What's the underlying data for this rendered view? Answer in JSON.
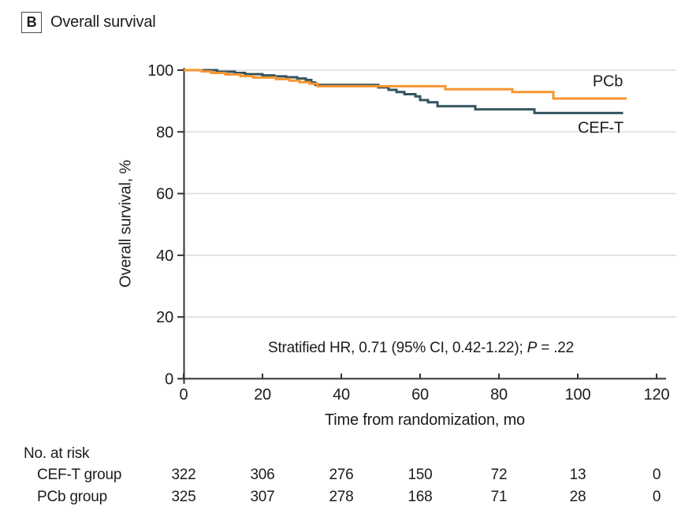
{
  "panel": {
    "label": "B",
    "title": "Overall survival"
  },
  "colors": {
    "pcb_line": "#F6952F",
    "cef_t_line": "#33545E",
    "gridline": "#DCDCDC",
    "axis": "#333333",
    "text": "#1C1C1C"
  },
  "annotation": {
    "before_p": "Stratified HR, 0.71 (95% CI, 0.42-1.22); ",
    "p": "P",
    "after_p": " = .22"
  },
  "chart_data": {
    "type": "line",
    "subtype": "kaplan-meier-step",
    "title": "Overall survival",
    "xlabel": "Time from randomization, mo",
    "ylabel": "Overall survival, %",
    "xlim": [
      0,
      120
    ],
    "ylim": [
      0,
      100
    ],
    "x_ticks": [
      0,
      20,
      40,
      60,
      80,
      100,
      120
    ],
    "y_ticks": [
      0,
      20,
      40,
      60,
      80,
      100
    ],
    "grid": "horizontal",
    "legend_position": "right-inline",
    "annotation": "Stratified HR, 0.71 (95% CI, 0.42-1.22); P = .22",
    "series": [
      {
        "name": "CEF-T",
        "color": "#33545E",
        "end_t": 111.5,
        "points": [
          [
            0,
            100
          ],
          [
            8.5,
            99.5
          ],
          [
            13,
            99.1
          ],
          [
            15.6,
            98.7
          ],
          [
            20,
            98.3
          ],
          [
            23,
            98.0
          ],
          [
            26,
            97.7
          ],
          [
            28.8,
            97.3
          ],
          [
            31,
            96.8
          ],
          [
            32.4,
            96.0
          ],
          [
            33.4,
            95.2
          ],
          [
            49.4,
            94.4
          ],
          [
            52,
            93.6
          ],
          [
            54,
            92.9
          ],
          [
            56,
            92.2
          ],
          [
            58.8,
            91.5
          ],
          [
            60,
            90.3
          ],
          [
            62,
            89.6
          ],
          [
            64.4,
            88.3
          ],
          [
            74,
            87.3
          ],
          [
            89,
            86.1
          ]
        ]
      },
      {
        "name": "PCb",
        "color": "#F6952F",
        "end_t": 112.4,
        "points": [
          [
            0,
            100
          ],
          [
            4.6,
            99.6
          ],
          [
            7,
            99.1
          ],
          [
            10.6,
            98.6
          ],
          [
            14.4,
            98.1
          ],
          [
            17.6,
            97.6
          ],
          [
            23.4,
            97.1
          ],
          [
            26.8,
            96.6
          ],
          [
            29.4,
            96.1
          ],
          [
            32,
            95.6
          ],
          [
            34,
            94.8
          ],
          [
            66.4,
            93.8
          ],
          [
            83.4,
            92.9
          ],
          [
            93.8,
            90.8
          ]
        ]
      }
    ]
  },
  "risk_table": {
    "heading": "No. at risk",
    "time_points": [
      0,
      20,
      40,
      60,
      80,
      100,
      120
    ],
    "rows": [
      {
        "label": "CEF-T group",
        "counts": [
          322,
          306,
          276,
          150,
          72,
          13,
          0
        ]
      },
      {
        "label": "PCb group",
        "counts": [
          325,
          307,
          278,
          168,
          71,
          28,
          0
        ]
      }
    ]
  }
}
